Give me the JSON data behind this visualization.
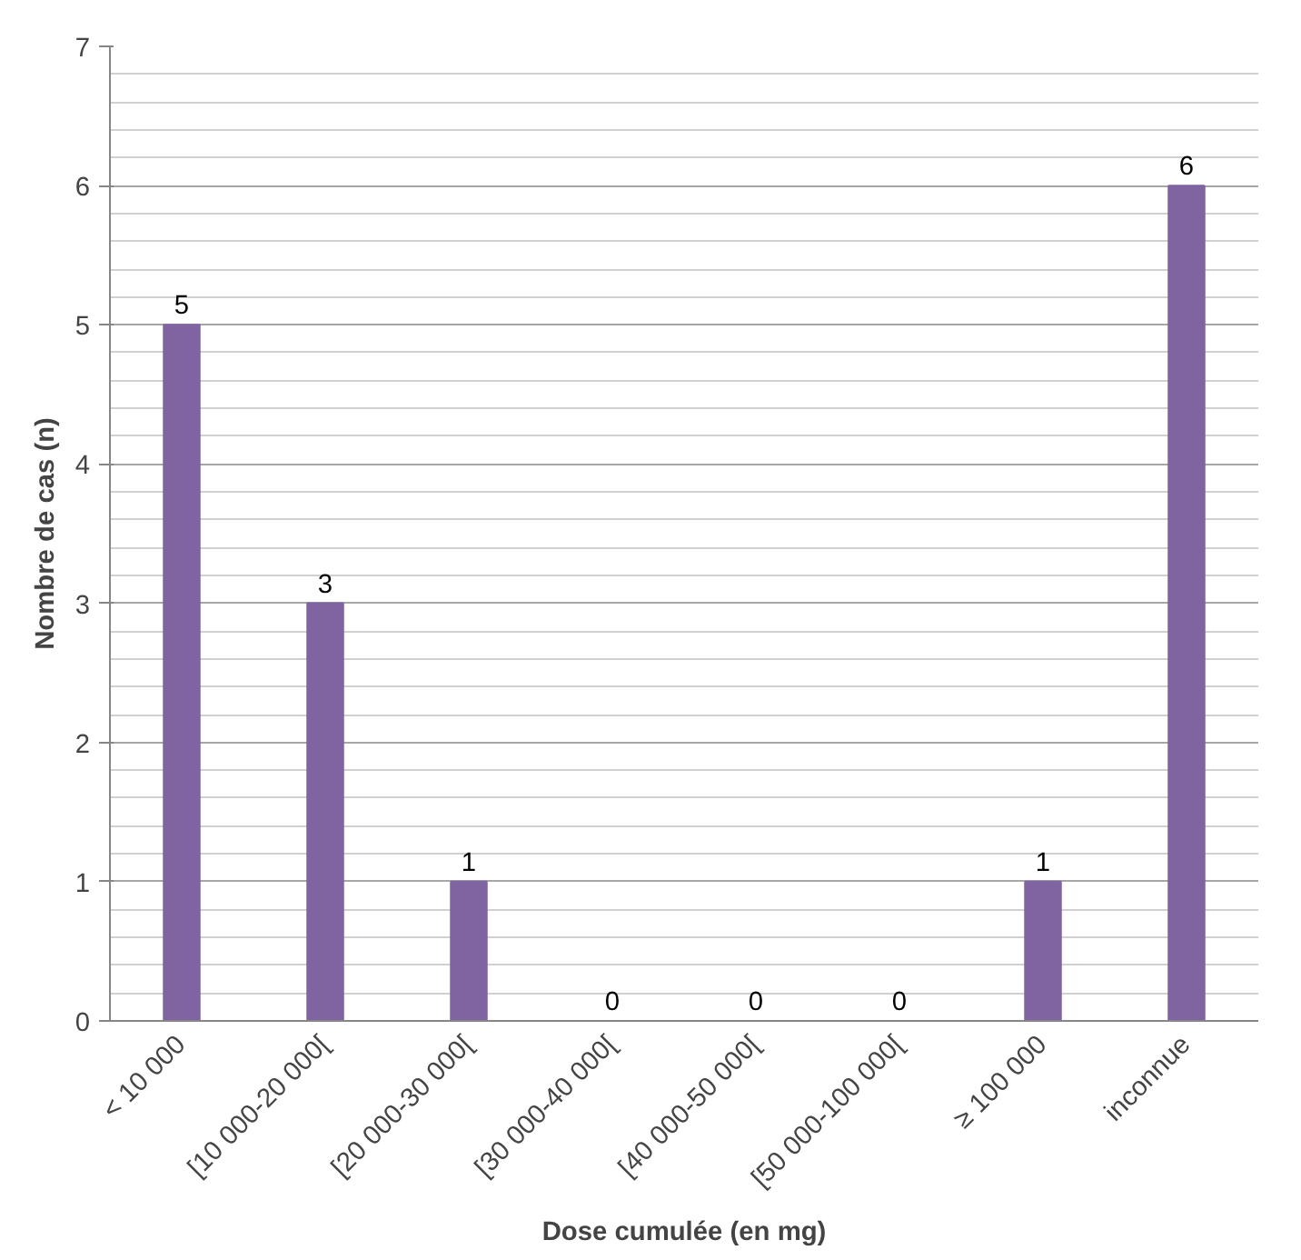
{
  "chart_data": {
    "type": "bar",
    "categories": [
      "< 10 000",
      "[10 000-20 000[",
      "[20 000-30 000[",
      "[30 000-40 000[",
      "[40 000-50 000[",
      "[50 000-100 000[",
      "≥ 100 000",
      "inconnue"
    ],
    "values": [
      5,
      3,
      1,
      0,
      0,
      0,
      1,
      6
    ],
    "color": "#8064a2",
    "xlabel": "Dose cumulée (en mg)",
    "ylabel": "Nombre de cas (n)",
    "ylim": [
      0,
      7
    ],
    "yticks": [
      0,
      1,
      2,
      3,
      4,
      5,
      6,
      7
    ],
    "grid": "y",
    "data_labels": true
  }
}
